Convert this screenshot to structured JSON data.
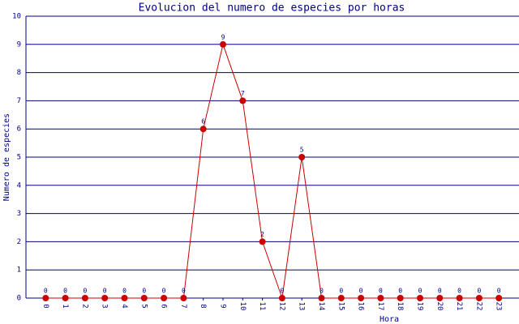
{
  "chart_data": {
    "type": "line",
    "title": "Evolucion del numero de especies por horas",
    "x_label": "Hora",
    "y_label": "Numero de especies",
    "categories": [
      "0",
      "1",
      "2",
      "3",
      "4",
      "5",
      "6",
      "7",
      "8",
      "9",
      "10",
      "11",
      "12",
      "13",
      "14",
      "15",
      "16",
      "17",
      "18",
      "19",
      "20",
      "21",
      "22",
      "23"
    ],
    "series": [
      {
        "name": "Numero de especies",
        "color": "#cc0000",
        "values": [
          0,
          0,
          0,
          0,
          0,
          0,
          0,
          0,
          6,
          9,
          7,
          2,
          0,
          5,
          0,
          0,
          0,
          0,
          0,
          0,
          0,
          0,
          0,
          0
        ]
      }
    ],
    "ylim": [
      0,
      10
    ],
    "yticks": [
      0,
      1,
      2,
      3,
      4,
      5,
      6,
      7,
      8,
      9,
      10
    ],
    "grid": true,
    "grid_color": "#000080",
    "data_labels": true
  }
}
